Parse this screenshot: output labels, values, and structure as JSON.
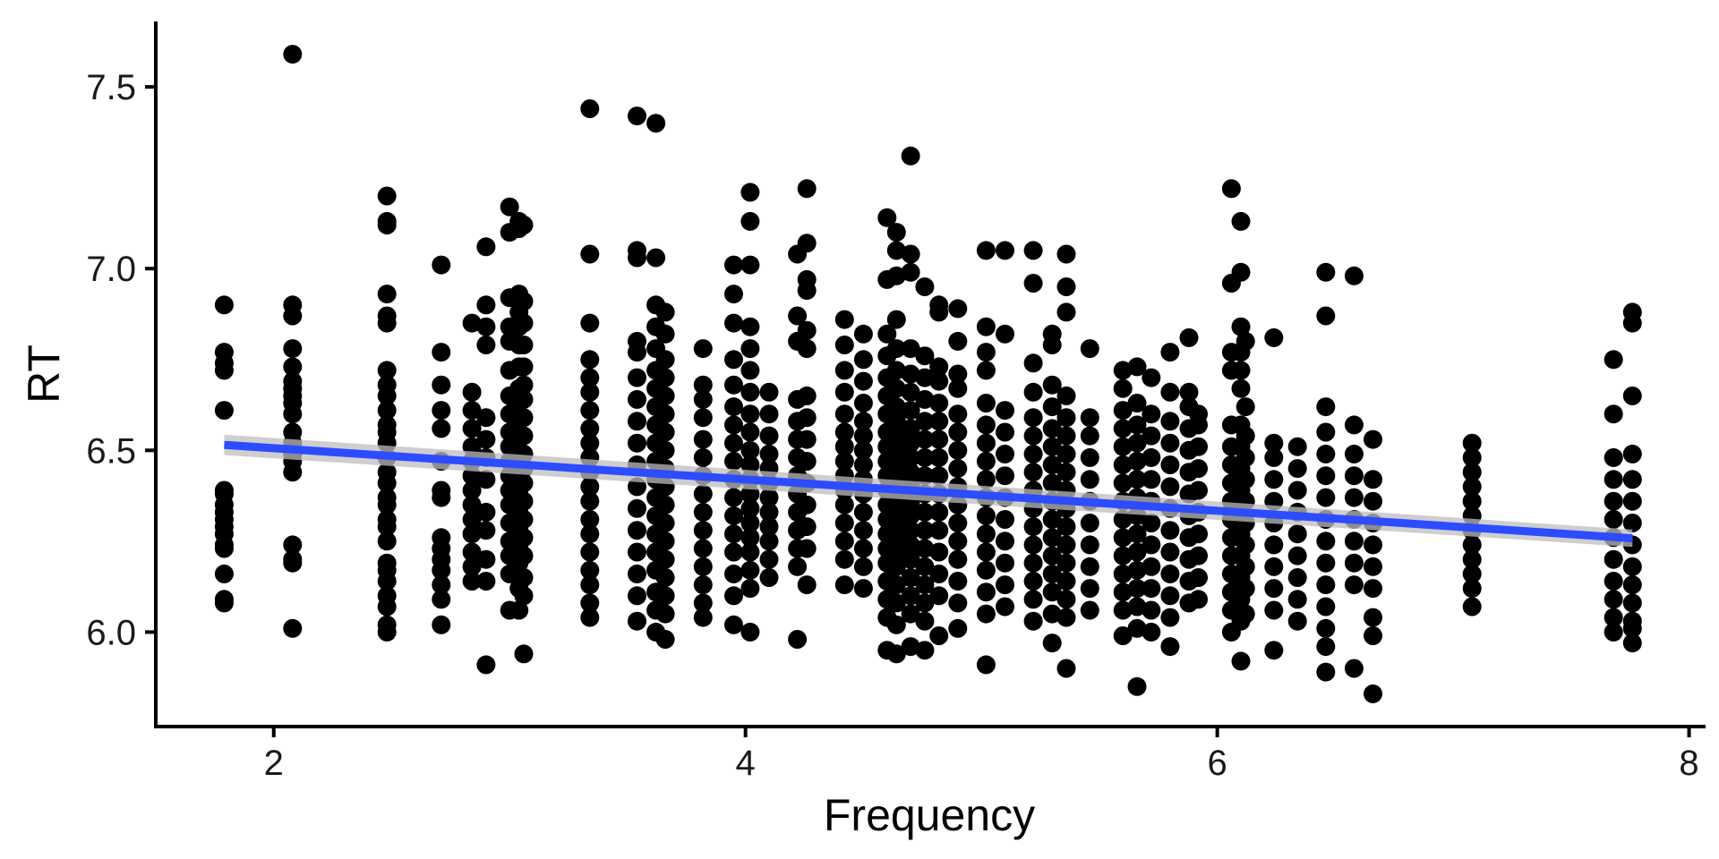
{
  "chart_data": {
    "type": "scatter",
    "title": "",
    "xlabel": "Frequency",
    "ylabel": "RT",
    "xlim": [
      1.5,
      8.07
    ],
    "ylim": [
      5.74,
      7.68
    ],
    "x_ticks": [
      2,
      4,
      6,
      8
    ],
    "y_ticks": [
      6.0,
      6.5,
      7.0,
      7.5
    ],
    "x_tick_labels": [
      "2",
      "4",
      "6",
      "8"
    ],
    "y_tick_labels": [
      "6.0",
      "6.5",
      "7.0",
      "7.5"
    ],
    "grid": false,
    "legend": "none",
    "point_color": "#000000",
    "columns": [
      {
        "x": 1.79,
        "y": [
          6.08,
          6.09,
          6.16,
          6.23,
          6.24,
          6.27,
          6.29,
          6.31,
          6.33,
          6.35,
          6.38,
          6.39,
          6.61,
          6.72,
          6.74,
          6.77,
          6.9
        ]
      },
      {
        "x": 2.08,
        "y": [
          6.01,
          6.19,
          6.2,
          6.24,
          6.44,
          6.47,
          6.49,
          6.52,
          6.55,
          6.6,
          6.63,
          6.65,
          6.67,
          6.69,
          6.73,
          6.78,
          6.87,
          6.9,
          7.59
        ]
      },
      {
        "x": 2.48,
        "y": [
          6.0,
          6.02,
          6.07,
          6.1,
          6.14,
          6.17,
          6.19,
          6.25,
          6.29,
          6.31,
          6.35,
          6.37,
          6.41,
          6.44,
          6.48,
          6.52,
          6.55,
          6.57,
          6.61,
          6.65,
          6.68,
          6.72,
          6.85,
          6.87,
          6.93,
          7.12,
          7.13,
          7.2
        ]
      },
      {
        "x": 2.71,
        "y": [
          6.02,
          6.09,
          6.13,
          6.17,
          6.2,
          6.23,
          6.26,
          6.37,
          6.39,
          6.47,
          6.56,
          6.61,
          6.68,
          6.77,
          7.01
        ]
      },
      {
        "x": 2.84,
        "y": [
          6.14,
          6.18,
          6.22,
          6.27,
          6.31,
          6.35,
          6.39,
          6.43,
          6.47,
          6.51,
          6.56,
          6.61,
          6.66,
          6.85
        ]
      },
      {
        "x": 2.9,
        "y": [
          5.91,
          6.14,
          6.2,
          6.28,
          6.33,
          6.42,
          6.48,
          6.53,
          6.59,
          6.79,
          6.84,
          6.9,
          7.06
        ]
      },
      {
        "x": 3.0,
        "y": [
          6.06,
          6.16,
          6.21,
          6.25,
          6.3,
          6.35,
          6.39,
          6.43,
          6.47,
          6.51,
          6.55,
          6.6,
          6.65,
          6.72,
          6.8,
          6.84,
          6.92,
          7.1,
          7.17
        ]
      },
      {
        "x": 3.04,
        "y": [
          6.06,
          6.12,
          6.19,
          6.23,
          6.29,
          6.34,
          6.38,
          6.42,
          6.46,
          6.5,
          6.54,
          6.58,
          6.63,
          6.67,
          6.73,
          6.79,
          6.84,
          6.88,
          6.93,
          7.13,
          7.11
        ]
      },
      {
        "x": 3.06,
        "y": [
          5.94,
          6.1,
          6.15,
          6.21,
          6.26,
          6.31,
          6.36,
          6.41,
          6.45,
          6.49,
          6.54,
          6.59,
          6.64,
          6.68,
          6.73,
          6.79,
          6.85,
          6.91,
          7.12
        ]
      },
      {
        "x": 3.34,
        "y": [
          6.04,
          6.08,
          6.13,
          6.17,
          6.22,
          6.27,
          6.31,
          6.36,
          6.4,
          6.44,
          6.48,
          6.52,
          6.56,
          6.61,
          6.66,
          6.7,
          6.75,
          6.85,
          7.04,
          7.44
        ]
      },
      {
        "x": 3.54,
        "y": [
          6.03,
          6.1,
          6.16,
          6.22,
          6.28,
          6.34,
          6.4,
          6.46,
          6.52,
          6.58,
          6.64,
          6.7,
          6.77,
          6.8,
          7.03,
          7.05,
          7.42
        ]
      },
      {
        "x": 3.62,
        "y": [
          6.0,
          6.06,
          6.11,
          6.17,
          6.22,
          6.27,
          6.32,
          6.37,
          6.42,
          6.47,
          6.52,
          6.57,
          6.62,
          6.67,
          6.72,
          6.78,
          6.84,
          6.9,
          7.03,
          7.4
        ]
      },
      {
        "x": 3.66,
        "y": [
          5.98,
          6.05,
          6.1,
          6.15,
          6.2,
          6.25,
          6.3,
          6.35,
          6.4,
          6.45,
          6.5,
          6.55,
          6.6,
          6.65,
          6.7,
          6.75,
          6.82,
          6.88
        ]
      },
      {
        "x": 3.82,
        "y": [
          6.04,
          6.08,
          6.13,
          6.18,
          6.23,
          6.28,
          6.33,
          6.38,
          6.43,
          6.48,
          6.53,
          6.59,
          6.64,
          6.68,
          6.78
        ]
      },
      {
        "x": 3.95,
        "y": [
          6.02,
          6.1,
          6.16,
          6.22,
          6.27,
          6.32,
          6.37,
          6.42,
          6.47,
          6.52,
          6.57,
          6.62,
          6.68,
          6.75,
          6.85,
          6.93,
          7.01
        ]
      },
      {
        "x": 4.02,
        "y": [
          6.0,
          6.12,
          6.17,
          6.22,
          6.26,
          6.3,
          6.34,
          6.38,
          6.42,
          6.46,
          6.5,
          6.55,
          6.6,
          6.66,
          6.72,
          6.78,
          6.84,
          7.01,
          7.13,
          7.21
        ]
      },
      {
        "x": 4.1,
        "y": [
          6.15,
          6.2,
          6.25,
          6.29,
          6.33,
          6.37,
          6.41,
          6.45,
          6.49,
          6.54,
          6.6,
          6.66
        ]
      },
      {
        "x": 4.22,
        "y": [
          5.98,
          6.18,
          6.23,
          6.28,
          6.33,
          6.38,
          6.43,
          6.48,
          6.53,
          6.58,
          6.64,
          6.8,
          6.87,
          7.04
        ]
      },
      {
        "x": 4.26,
        "y": [
          6.13,
          6.23,
          6.29,
          6.35,
          6.41,
          6.47,
          6.53,
          6.59,
          6.65,
          6.78,
          6.83,
          6.94,
          6.97,
          7.07,
          7.22
        ]
      },
      {
        "x": 4.42,
        "y": [
          6.13,
          6.2,
          6.25,
          6.3,
          6.35,
          6.39,
          6.43,
          6.47,
          6.51,
          6.55,
          6.6,
          6.66,
          6.72,
          6.79,
          6.86
        ]
      },
      {
        "x": 4.5,
        "y": [
          6.12,
          6.18,
          6.23,
          6.28,
          6.33,
          6.38,
          6.42,
          6.46,
          6.5,
          6.54,
          6.58,
          6.63,
          6.69,
          6.75,
          6.82
        ]
      },
      {
        "x": 4.6,
        "y": [
          5.95,
          6.04,
          6.09,
          6.14,
          6.19,
          6.23,
          6.27,
          6.31,
          6.35,
          6.39,
          6.43,
          6.47,
          6.51,
          6.55,
          6.6,
          6.65,
          6.7,
          6.76,
          6.82,
          6.97,
          7.14
        ]
      },
      {
        "x": 4.64,
        "y": [
          5.94,
          6.02,
          6.08,
          6.13,
          6.18,
          6.22,
          6.26,
          6.3,
          6.34,
          6.38,
          6.42,
          6.46,
          6.5,
          6.54,
          6.58,
          6.62,
          6.67,
          6.72,
          6.78,
          6.86,
          6.98,
          7.05,
          7.1
        ]
      },
      {
        "x": 4.7,
        "y": [
          5.96,
          6.05,
          6.1,
          6.15,
          6.2,
          6.24,
          6.28,
          6.32,
          6.36,
          6.4,
          6.44,
          6.48,
          6.52,
          6.56,
          6.61,
          6.66,
          6.71,
          6.78,
          6.99,
          7.04,
          7.31
        ]
      },
      {
        "x": 4.76,
        "y": [
          5.95,
          6.03,
          6.08,
          6.13,
          6.18,
          6.23,
          6.28,
          6.33,
          6.38,
          6.43,
          6.48,
          6.53,
          6.58,
          6.64,
          6.7,
          6.76,
          6.95
        ]
      },
      {
        "x": 4.82,
        "y": [
          5.99,
          6.1,
          6.16,
          6.22,
          6.28,
          6.33,
          6.38,
          6.43,
          6.48,
          6.53,
          6.58,
          6.63,
          6.69,
          6.73,
          6.88,
          6.9
        ]
      },
      {
        "x": 4.9,
        "y": [
          6.01,
          6.08,
          6.14,
          6.2,
          6.25,
          6.3,
          6.35,
          6.4,
          6.45,
          6.5,
          6.55,
          6.6,
          6.67,
          6.71,
          6.8,
          6.89
        ]
      },
      {
        "x": 5.02,
        "y": [
          5.91,
          6.05,
          6.11,
          6.17,
          6.22,
          6.27,
          6.32,
          6.37,
          6.42,
          6.47,
          6.52,
          6.57,
          6.63,
          6.72,
          6.77,
          6.84,
          7.05
        ]
      },
      {
        "x": 5.1,
        "y": [
          6.07,
          6.13,
          6.19,
          6.25,
          6.31,
          6.37,
          6.43,
          6.49,
          6.55,
          6.61,
          6.82,
          7.05
        ]
      },
      {
        "x": 5.22,
        "y": [
          6.03,
          6.09,
          6.14,
          6.19,
          6.24,
          6.29,
          6.34,
          6.39,
          6.44,
          6.49,
          6.54,
          6.59,
          6.66,
          6.74,
          6.96,
          7.05
        ]
      },
      {
        "x": 5.3,
        "y": [
          5.97,
          6.05,
          6.11,
          6.16,
          6.21,
          6.26,
          6.31,
          6.36,
          6.41,
          6.46,
          6.51,
          6.56,
          6.62,
          6.68,
          6.79,
          6.82
        ]
      },
      {
        "x": 5.36,
        "y": [
          5.9,
          6.04,
          6.09,
          6.14,
          6.19,
          6.24,
          6.29,
          6.34,
          6.39,
          6.44,
          6.49,
          6.54,
          6.59,
          6.65,
          6.88,
          6.95,
          7.04
        ]
      },
      {
        "x": 5.46,
        "y": [
          6.06,
          6.12,
          6.18,
          6.24,
          6.3,
          6.36,
          6.42,
          6.48,
          6.54,
          6.59,
          6.78
        ]
      },
      {
        "x": 5.6,
        "y": [
          5.99,
          6.06,
          6.11,
          6.16,
          6.21,
          6.26,
          6.31,
          6.36,
          6.41,
          6.46,
          6.51,
          6.56,
          6.61,
          6.67,
          6.72
        ]
      },
      {
        "x": 5.66,
        "y": [
          5.85,
          6.01,
          6.07,
          6.12,
          6.17,
          6.22,
          6.27,
          6.32,
          6.37,
          6.42,
          6.47,
          6.52,
          6.57,
          6.63,
          6.73
        ]
      },
      {
        "x": 5.72,
        "y": [
          6.0,
          6.06,
          6.12,
          6.18,
          6.24,
          6.3,
          6.36,
          6.42,
          6.48,
          6.54,
          6.6,
          6.7
        ]
      },
      {
        "x": 5.8,
        "y": [
          5.96,
          6.04,
          6.1,
          6.16,
          6.22,
          6.28,
          6.34,
          6.4,
          6.46,
          6.52,
          6.58,
          6.66,
          6.77
        ]
      },
      {
        "x": 5.88,
        "y": [
          6.08,
          6.14,
          6.2,
          6.26,
          6.32,
          6.38,
          6.44,
          6.5,
          6.56,
          6.62,
          6.66,
          6.81
        ]
      },
      {
        "x": 5.92,
        "y": [
          6.09,
          6.15,
          6.21,
          6.27,
          6.33,
          6.39,
          6.45,
          6.51,
          6.57,
          6.6
        ]
      },
      {
        "x": 6.06,
        "y": [
          6.0,
          6.06,
          6.11,
          6.16,
          6.21,
          6.26,
          6.31,
          6.36,
          6.41,
          6.46,
          6.51,
          6.57,
          6.72,
          6.77,
          6.96,
          7.22
        ]
      },
      {
        "x": 6.1,
        "y": [
          5.92,
          6.03,
          6.09,
          6.15,
          6.21,
          6.27,
          6.33,
          6.39,
          6.45,
          6.51,
          6.57,
          6.67,
          6.72,
          6.77,
          6.84,
          6.99,
          7.13
        ]
      },
      {
        "x": 6.12,
        "y": [
          6.05,
          6.12,
          6.18,
          6.24,
          6.3,
          6.36,
          6.42,
          6.48,
          6.54,
          6.62,
          6.8
        ]
      },
      {
        "x": 6.24,
        "y": [
          5.95,
          6.06,
          6.12,
          6.18,
          6.24,
          6.3,
          6.36,
          6.42,
          6.48,
          6.52,
          6.81
        ]
      },
      {
        "x": 6.34,
        "y": [
          6.03,
          6.09,
          6.15,
          6.21,
          6.27,
          6.33,
          6.39,
          6.45,
          6.51
        ]
      },
      {
        "x": 6.46,
        "y": [
          5.89,
          5.96,
          6.01,
          6.07,
          6.13,
          6.19,
          6.25,
          6.31,
          6.37,
          6.43,
          6.49,
          6.55,
          6.62,
          6.87,
          6.99
        ]
      },
      {
        "x": 6.58,
        "y": [
          5.9,
          6.13,
          6.19,
          6.25,
          6.31,
          6.37,
          6.43,
          6.49,
          6.57,
          6.98
        ]
      },
      {
        "x": 6.66,
        "y": [
          5.83,
          5.99,
          6.04,
          6.12,
          6.18,
          6.24,
          6.3,
          6.36,
          6.42,
          6.53
        ]
      },
      {
        "x": 7.08,
        "y": [
          6.07,
          6.12,
          6.16,
          6.2,
          6.24,
          6.28,
          6.32,
          6.36,
          6.4,
          6.44,
          6.48,
          6.52
        ]
      },
      {
        "x": 7.68,
        "y": [
          6.0,
          6.04,
          6.09,
          6.14,
          6.2,
          6.26,
          6.31,
          6.36,
          6.42,
          6.48,
          6.6,
          6.75
        ]
      },
      {
        "x": 7.76,
        "y": [
          5.97,
          6.01,
          6.03,
          6.08,
          6.13,
          6.18,
          6.24,
          6.3,
          6.36,
          6.42,
          6.49,
          6.65,
          6.85,
          6.88
        ]
      }
    ],
    "trend_line": {
      "type": "linear",
      "color": "#2b4cff",
      "band_color": "#bdbdbd",
      "x": [
        1.79,
        7.76
      ],
      "y": [
        6.515,
        6.258
      ],
      "se_band": [
        0.028,
        0.024
      ]
    }
  }
}
